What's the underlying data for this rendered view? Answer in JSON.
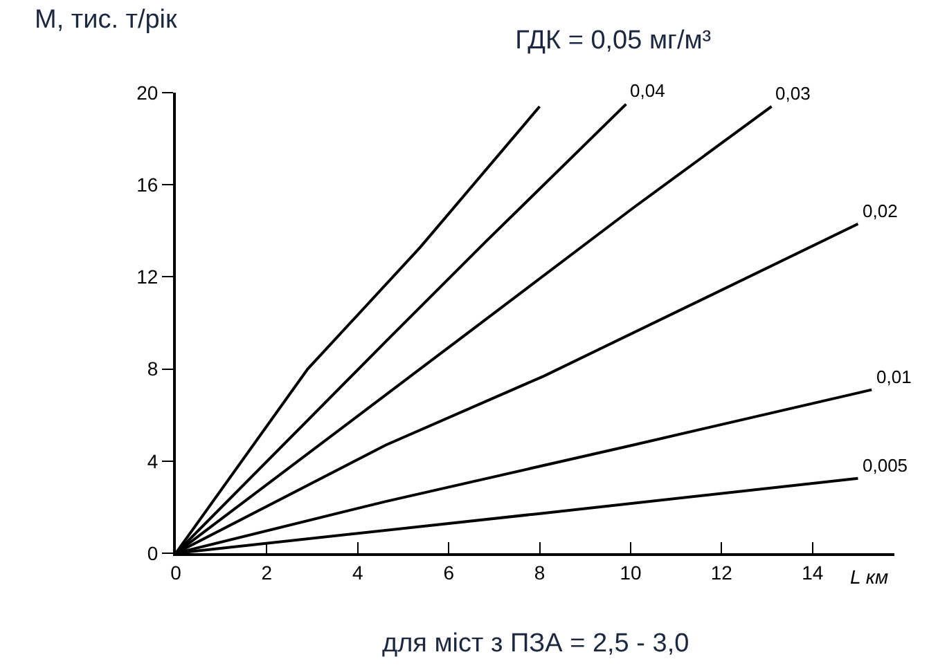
{
  "chart_data": {
    "type": "line",
    "title": "ГДК = 0,05 мг/м³",
    "ylabel": "М, тис. т/рік",
    "xlabel": "L км",
    "annotations": [
      "для міст з ПЗА = 2,5 - 3,0"
    ],
    "xlim": [
      0,
      15.8
    ],
    "xticks": [
      0,
      2,
      4,
      6,
      8,
      10,
      12,
      14
    ],
    "ylim": [
      0,
      20
    ],
    "yticks": [
      0,
      4,
      8,
      12,
      16,
      20
    ],
    "grid": false,
    "legend": false,
    "marker": "none",
    "line_style": "solid",
    "series": [
      {
        "color": "#000000",
        "x": [
          0,
          2.9,
          5.38,
          8.0
        ],
        "values": [
          0,
          8,
          13.3,
          19.4
        ]
      },
      {
        "name": "0,04",
        "color": "#000000",
        "x": [
          0,
          4.62,
          6.8,
          9.9
        ],
        "values": [
          0,
          9.2,
          13.5,
          19.5
        ]
      },
      {
        "name": "0,03",
        "color": "#000000",
        "x": [
          0,
          6.04,
          10.06,
          13.1
        ],
        "values": [
          0,
          9.0,
          15.0,
          19.4
        ]
      },
      {
        "name": "0,02",
        "color": "#000000",
        "x": [
          0,
          4.62,
          8.1,
          15.0
        ],
        "values": [
          0,
          4.7,
          7.7,
          14.3
        ]
      },
      {
        "name": "0,01",
        "color": "#000000",
        "x": [
          0,
          4.62,
          10.06,
          15.3
        ],
        "values": [
          0,
          2.25,
          4.7,
          7.1
        ]
      },
      {
        "name": "0,005",
        "color": "#000000",
        "x": [
          0,
          7.9,
          15.0
        ],
        "values": [
          0,
          1.7,
          3.25
        ]
      }
    ]
  }
}
